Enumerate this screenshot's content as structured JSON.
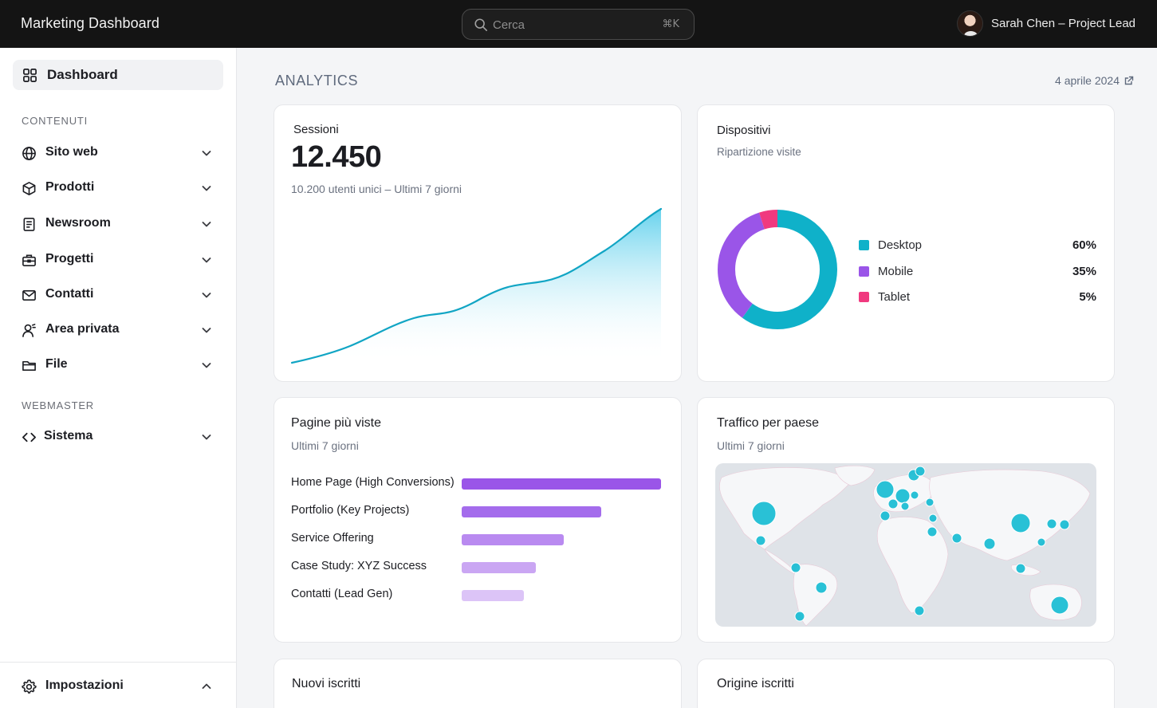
{
  "header": {
    "app_title": "Marketing Dashboard",
    "search_placeholder": "Cerca",
    "search_shortcut": "⌘K",
    "user_name": "Sarah Chen – Project Lead"
  },
  "sidebar": {
    "dashboard_label": "Dashboard",
    "sections": [
      {
        "heading": "CONTENUTI",
        "items": [
          {
            "label": "Sito web",
            "icon": "globe-icon"
          },
          {
            "label": "Prodotti",
            "icon": "box-icon"
          },
          {
            "label": "Newsroom",
            "icon": "document-icon"
          },
          {
            "label": "Progetti",
            "icon": "briefcase-icon"
          },
          {
            "label": "Contatti",
            "icon": "mail-icon"
          },
          {
            "label": "Area privata",
            "icon": "user-icon"
          },
          {
            "label": "File",
            "icon": "folder-icon"
          }
        ]
      },
      {
        "heading": "WEBMASTER",
        "items": [
          {
            "label": "Sistema",
            "icon": "code-icon"
          }
        ]
      }
    ],
    "settings_label": "Impostazioni"
  },
  "main": {
    "title": "ANALYTICS",
    "date": "4 aprile 2024"
  },
  "sessions_card": {
    "title": "Sessioni",
    "value": "12.450",
    "subtitle": "10.200 utenti unici – Ultimi 7 giorni"
  },
  "devices_card": {
    "title": "Dispositivi",
    "subtitle": "Ripartizione visite",
    "items": [
      {
        "name": "Desktop",
        "value": "60%",
        "pct": 60,
        "color": "#0fb1c9"
      },
      {
        "name": "Mobile",
        "value": "35%",
        "pct": 35,
        "color": "#9a55e8"
      },
      {
        "name": "Tablet",
        "value": "5%",
        "pct": 5,
        "color": "#f0397f"
      }
    ]
  },
  "pages_card": {
    "title": "Pagine più viste",
    "subtitle": "Ultimi 7 giorni",
    "items": [
      {
        "label": "Home Page (High Conversions)",
        "share": 1.0,
        "color": "#9a55e8"
      },
      {
        "label": "Portfolio (Key Projects)",
        "share": 0.7,
        "color": "#a46cec"
      },
      {
        "label": "Service Offering",
        "share": 0.51,
        "color": "#b98af0"
      },
      {
        "label": "Case Study: XYZ Success",
        "share": 0.37,
        "color": "#caa6f3"
      },
      {
        "label": "Contatti (Lead Gen)",
        "share": 0.31,
        "color": "#dcc4f7"
      }
    ]
  },
  "traffic_card": {
    "title": "Traffico per paese",
    "subtitle": "Ultimi 7 giorni"
  },
  "bottom_cards": {
    "new_subscribers_title": "Nuovi iscritti",
    "subscribers_origin_title": "Origine iscritti"
  },
  "colors": {
    "accent_cyan": "#0fb1c9",
    "accent_purple": "#9a55e8",
    "accent_pink": "#f0397f"
  }
}
